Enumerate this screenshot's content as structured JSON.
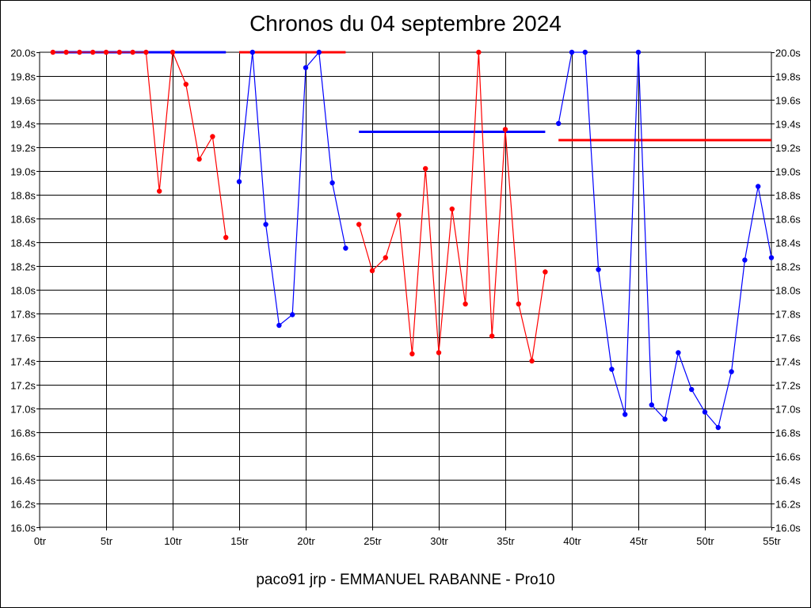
{
  "chart_data": {
    "type": "line",
    "title": "Chronos du 04 septembre 2024",
    "footer": "paco91 jrp - EMMANUEL RABANNE - Pro10",
    "xlabel": "",
    "ylabel": "",
    "xlim": [
      0,
      55
    ],
    "ylim": [
      16.0,
      20.0
    ],
    "grid": true,
    "legend": "none",
    "x_ticks": [
      "0tr",
      "5tr",
      "10tr",
      "15tr",
      "20tr",
      "25tr",
      "30tr",
      "35tr",
      "40tr",
      "45tr",
      "50tr",
      "55tr"
    ],
    "y_ticks": [
      "16.0s",
      "16.2s",
      "16.4s",
      "16.6s",
      "16.8s",
      "17.0s",
      "17.2s",
      "17.4s",
      "17.6s",
      "17.8s",
      "18.0s",
      "18.2s",
      "18.4s",
      "18.6s",
      "18.8s",
      "19.0s",
      "19.2s",
      "19.4s",
      "19.6s",
      "19.8s",
      "20.0s"
    ],
    "colors": {
      "red": "#ff0000",
      "blue": "#0000ff",
      "grid": "#000000"
    },
    "series": [
      {
        "color": "#ff0000",
        "x": [
          1,
          2,
          3,
          4,
          5,
          6,
          7,
          8,
          9,
          10,
          11,
          12,
          13,
          14
        ],
        "y": [
          20.0,
          20.0,
          20.0,
          20.0,
          20.0,
          20.0,
          20.0,
          20.0,
          18.83,
          20.0,
          19.73,
          19.1,
          19.29,
          18.44
        ]
      },
      {
        "color": "#0000ff",
        "x": [
          15,
          16,
          17,
          18,
          19,
          20,
          21,
          22,
          23
        ],
        "y": [
          18.91,
          20.0,
          18.55,
          17.7,
          17.79,
          19.87,
          20.0,
          18.9,
          18.35
        ]
      },
      {
        "color": "#ff0000",
        "x": [
          24,
          25,
          26,
          27,
          28,
          29,
          30,
          31,
          32,
          33,
          34,
          35,
          36,
          37,
          38
        ],
        "y": [
          18.55,
          18.16,
          18.27,
          18.63,
          17.46,
          19.02,
          17.47,
          18.68,
          17.88,
          20.0,
          17.61,
          19.35,
          17.88,
          17.4,
          18.15
        ]
      },
      {
        "color": "#0000ff",
        "x": [
          39,
          40,
          41,
          42,
          43,
          44,
          45,
          46,
          47,
          48,
          49,
          50,
          51,
          52,
          53,
          54,
          55
        ],
        "y": [
          19.4,
          20.0,
          20.0,
          18.17,
          17.33,
          16.95,
          20.0,
          17.03,
          16.91,
          17.47,
          17.16,
          16.97,
          16.84,
          17.31,
          18.25,
          18.87,
          18.27
        ]
      }
    ],
    "averages": [
      {
        "color": "#0000ff",
        "x0": 1,
        "x1": 14,
        "y": 20.0
      },
      {
        "color": "#ff0000",
        "x0": 15,
        "x1": 23,
        "y": 20.0
      },
      {
        "color": "#0000ff",
        "x0": 24,
        "x1": 38,
        "y": 19.33
      },
      {
        "color": "#ff0000",
        "x0": 39,
        "x1": 55,
        "y": 19.26
      }
    ]
  }
}
